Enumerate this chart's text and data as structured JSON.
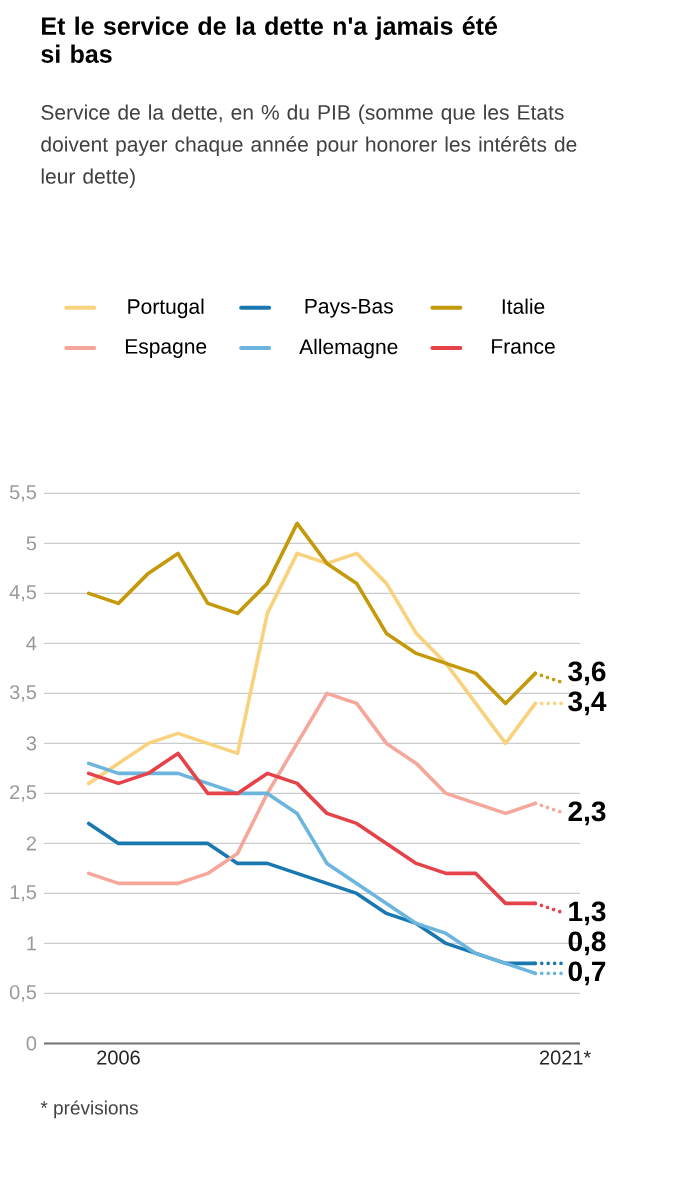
{
  "chart_data": {
    "type": "line",
    "title": "Et le service de la dette n'a jamais été si bas",
    "subtitle": "Service de la dette, en % du PIB (somme que les Etats doivent payer chaque année pour honorer les intérêts de leur dette)",
    "annotations": [
      "* prévisions"
    ],
    "x": [
      2005,
      2006,
      2007,
      2008,
      2009,
      2010,
      2011,
      2012,
      2013,
      2014,
      2015,
      2016,
      2017,
      2018,
      2019,
      2020,
      2021
    ],
    "xlim": [
      2003.5,
      2021.5
    ],
    "xticks": [
      {
        "value": 2006,
        "label": "2006"
      },
      {
        "value": 2021,
        "label": "2021*"
      }
    ],
    "ylim": [
      0,
      5.5
    ],
    "yticks": [
      {
        "value": 0,
        "label": "0"
      },
      {
        "value": 0.5,
        "label": "0,5"
      },
      {
        "value": 1,
        "label": "1"
      },
      {
        "value": 1.5,
        "label": "1,5"
      },
      {
        "value": 2,
        "label": "2"
      },
      {
        "value": 2.5,
        "label": "2,5"
      },
      {
        "value": 3,
        "label": "3"
      },
      {
        "value": 3.5,
        "label": "3,5"
      },
      {
        "value": 4,
        "label": "4"
      },
      {
        "value": 4.5,
        "label": "4,5"
      },
      {
        "value": 5,
        "label": "5"
      },
      {
        "value": 5.5,
        "label": "5,5"
      }
    ],
    "grid": "y",
    "legend": "top",
    "marker": "none",
    "line_style": "solid",
    "series": [
      {
        "name": "Portugal",
        "color": "#f8d27c",
        "values": [
          2.6,
          2.8,
          3.0,
          3.1,
          3.0,
          2.9,
          4.3,
          4.9,
          4.8,
          4.9,
          4.6,
          4.1,
          3.8,
          3.4,
          3.0,
          3.4,
          null
        ]
      },
      {
        "name": "Pays-Bas",
        "color": "#1a78b0",
        "values": [
          2.2,
          2.0,
          2.0,
          2.0,
          2.0,
          1.8,
          1.8,
          1.7,
          1.6,
          1.5,
          1.3,
          1.2,
          1.0,
          0.9,
          0.8,
          0.8,
          null
        ]
      },
      {
        "name": "Italie",
        "color": "#c49a0c",
        "values": [
          4.5,
          4.4,
          4.7,
          4.9,
          4.4,
          4.3,
          4.6,
          5.2,
          4.8,
          4.6,
          4.1,
          3.9,
          3.8,
          3.7,
          3.4,
          3.7,
          null
        ]
      },
      {
        "name": "Espagne",
        "color": "#f4a79a",
        "values": [
          1.7,
          1.6,
          1.6,
          1.6,
          1.7,
          1.9,
          2.5,
          3.0,
          3.5,
          3.4,
          3.0,
          2.8,
          2.5,
          2.4,
          2.3,
          2.4,
          null
        ]
      },
      {
        "name": "Allemagne",
        "color": "#6bb5de",
        "values": [
          2.8,
          2.7,
          2.7,
          2.7,
          2.6,
          2.5,
          2.5,
          2.3,
          1.8,
          1.6,
          1.4,
          1.2,
          1.1,
          0.9,
          0.8,
          0.7,
          null
        ]
      },
      {
        "name": "France",
        "color": "#e6424a",
        "values": [
          2.7,
          2.6,
          2.7,
          2.9,
          2.5,
          2.5,
          2.7,
          2.6,
          2.3,
          2.2,
          2.0,
          1.8,
          1.7,
          1.7,
          1.4,
          1.4,
          null
        ]
      },
      {
        "color": "#f8d27c",
        "values": [
          null,
          null,
          null,
          null,
          null,
          null,
          null,
          null,
          null,
          null,
          null,
          null,
          null,
          null,
          null,
          3.4,
          3.4
        ],
        "line_style": "dotted",
        "value_labels": [
          null,
          null,
          null,
          null,
          null,
          null,
          null,
          null,
          null,
          null,
          null,
          null,
          null,
          null,
          null,
          null,
          "3,4"
        ]
      },
      {
        "color": "#1a78b0",
        "values": [
          null,
          null,
          null,
          null,
          null,
          null,
          null,
          null,
          null,
          null,
          null,
          null,
          null,
          null,
          null,
          0.8,
          0.8
        ],
        "line_style": "dotted",
        "value_labels": [
          null,
          null,
          null,
          null,
          null,
          null,
          null,
          null,
          null,
          null,
          null,
          null,
          null,
          null,
          null,
          null,
          "0,8"
        ]
      },
      {
        "color": "#c49a0c",
        "values": [
          null,
          null,
          null,
          null,
          null,
          null,
          null,
          null,
          null,
          null,
          null,
          null,
          null,
          null,
          null,
          3.7,
          3.6
        ],
        "line_style": "dotted",
        "value_labels": [
          null,
          null,
          null,
          null,
          null,
          null,
          null,
          null,
          null,
          null,
          null,
          null,
          null,
          null,
          null,
          null,
          "3,6"
        ]
      },
      {
        "color": "#f4a79a",
        "values": [
          null,
          null,
          null,
          null,
          null,
          null,
          null,
          null,
          null,
          null,
          null,
          null,
          null,
          null,
          null,
          2.4,
          2.3
        ],
        "line_style": "dotted",
        "value_labels": [
          null,
          null,
          null,
          null,
          null,
          null,
          null,
          null,
          null,
          null,
          null,
          null,
          null,
          null,
          null,
          null,
          "2,3"
        ]
      },
      {
        "color": "#6bb5de",
        "values": [
          null,
          null,
          null,
          null,
          null,
          null,
          null,
          null,
          null,
          null,
          null,
          null,
          null,
          null,
          null,
          0.7,
          0.7
        ],
        "line_style": "dotted",
        "value_labels": [
          null,
          null,
          null,
          null,
          null,
          null,
          null,
          null,
          null,
          null,
          null,
          null,
          null,
          null,
          null,
          null,
          "0,7"
        ]
      },
      {
        "color": "#e6424a",
        "values": [
          null,
          null,
          null,
          null,
          null,
          null,
          null,
          null,
          null,
          null,
          null,
          null,
          null,
          null,
          null,
          1.4,
          1.3
        ],
        "line_style": "dotted",
        "value_labels": [
          null,
          null,
          null,
          null,
          null,
          null,
          null,
          null,
          null,
          null,
          null,
          null,
          null,
          null,
          null,
          null,
          "1,3"
        ]
      }
    ]
  }
}
